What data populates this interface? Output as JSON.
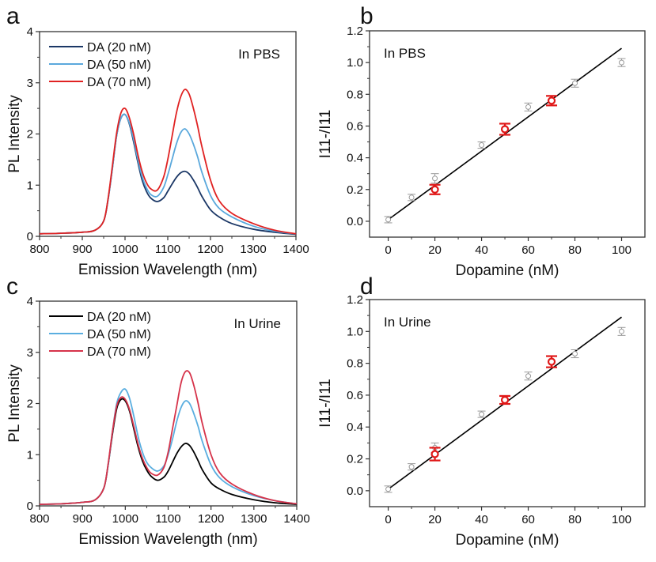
{
  "chart_data": [
    {
      "panel": "a",
      "type": "line",
      "annotation": "In PBS",
      "xlabel": "Emission Wavelength (nm)",
      "ylabel": "PL Intensity",
      "xlim": [
        800,
        1400
      ],
      "ylim": [
        0,
        4
      ],
      "xticks": [
        800,
        900,
        1000,
        1100,
        1200,
        1300,
        1400
      ],
      "yticks": [
        0,
        1,
        2,
        3,
        4
      ],
      "legend_position": "top-left",
      "x": [
        800,
        850,
        900,
        930,
        950,
        960,
        970,
        980,
        990,
        1000,
        1010,
        1020,
        1030,
        1040,
        1050,
        1060,
        1075,
        1090,
        1100,
        1110,
        1120,
        1130,
        1140,
        1150,
        1160,
        1170,
        1180,
        1200,
        1220,
        1250,
        1300,
        1350,
        1400
      ],
      "series": [
        {
          "name": "DA (20 nM)",
          "color": "#1b3766",
          "values": [
            0.05,
            0.06,
            0.08,
            0.12,
            0.3,
            0.7,
            1.3,
            1.95,
            2.3,
            2.38,
            2.2,
            1.85,
            1.45,
            1.1,
            0.88,
            0.75,
            0.68,
            0.75,
            0.88,
            1.02,
            1.15,
            1.24,
            1.27,
            1.22,
            1.1,
            0.95,
            0.78,
            0.52,
            0.38,
            0.25,
            0.14,
            0.08,
            0.04
          ]
        },
        {
          "name": "DA (50 nM)",
          "color": "#5aa8dc",
          "values": [
            0.05,
            0.06,
            0.08,
            0.12,
            0.3,
            0.7,
            1.3,
            1.95,
            2.3,
            2.38,
            2.22,
            1.9,
            1.5,
            1.17,
            0.95,
            0.82,
            0.78,
            0.95,
            1.2,
            1.5,
            1.8,
            2.02,
            2.1,
            2.0,
            1.8,
            1.55,
            1.25,
            0.8,
            0.55,
            0.38,
            0.2,
            0.1,
            0.05
          ]
        },
        {
          "name": "DA (70 nM)",
          "color": "#e02222",
          "values": [
            0.05,
            0.06,
            0.08,
            0.12,
            0.3,
            0.72,
            1.35,
            2.0,
            2.4,
            2.5,
            2.32,
            2.0,
            1.6,
            1.27,
            1.05,
            0.93,
            0.9,
            1.15,
            1.5,
            1.95,
            2.4,
            2.72,
            2.87,
            2.78,
            2.5,
            2.15,
            1.75,
            1.1,
            0.7,
            0.45,
            0.25,
            0.12,
            0.05
          ]
        }
      ]
    },
    {
      "panel": "b",
      "type": "scatter",
      "annotation": "In PBS",
      "xlabel": "Dopamine (nM)",
      "ylabel": "I11-/I11",
      "xlim": [
        -8,
        110
      ],
      "ylim": [
        -0.1,
        1.2
      ],
      "xticks": [
        0,
        20,
        40,
        60,
        80,
        100
      ],
      "yticks": [
        "0.0",
        "0.2",
        "0.4",
        "0.6",
        "0.8",
        "1.0",
        "1.2"
      ],
      "calibration": {
        "color": "#999999",
        "x": [
          0,
          10,
          20,
          40,
          60,
          80,
          100
        ],
        "y": [
          0.01,
          0.15,
          0.27,
          0.48,
          0.72,
          0.87,
          1.0
        ],
        "err": [
          0.02,
          0.02,
          0.03,
          0.02,
          0.025,
          0.025,
          0.025
        ]
      },
      "samples": {
        "color": "#e01818",
        "x": [
          20,
          50,
          70
        ],
        "y": [
          0.2,
          0.58,
          0.76
        ],
        "err": [
          0.03,
          0.035,
          0.03
        ]
      },
      "fit": {
        "x": [
          0,
          100
        ],
        "y": [
          0.01,
          1.09
        ]
      }
    },
    {
      "panel": "c",
      "type": "line",
      "annotation": "In Urine",
      "xlabel": "Emission Wavelength (nm)",
      "ylabel": "PL Intensity",
      "xlim": [
        800,
        1400
      ],
      "ylim": [
        0,
        4
      ],
      "xticks": [
        800,
        900,
        1000,
        1100,
        1200,
        1300,
        1400
      ],
      "yticks": [
        0,
        1,
        2,
        3,
        4
      ],
      "legend_position": "top-left",
      "x": [
        800,
        850,
        900,
        930,
        950,
        960,
        970,
        980,
        990,
        1000,
        1010,
        1020,
        1030,
        1040,
        1050,
        1060,
        1075,
        1090,
        1100,
        1110,
        1120,
        1130,
        1140,
        1150,
        1160,
        1170,
        1180,
        1200,
        1220,
        1250,
        1300,
        1350,
        1400
      ],
      "series": [
        {
          "name": "DA (20 nM)",
          "color": "#000000",
          "values": [
            0.03,
            0.04,
            0.07,
            0.12,
            0.35,
            0.8,
            1.4,
            1.9,
            2.08,
            2.05,
            1.85,
            1.5,
            1.15,
            0.88,
            0.7,
            0.58,
            0.5,
            0.56,
            0.68,
            0.85,
            1.02,
            1.15,
            1.22,
            1.18,
            1.05,
            0.88,
            0.7,
            0.45,
            0.33,
            0.22,
            0.12,
            0.06,
            0.03
          ]
        },
        {
          "name": "DA (50 nM)",
          "color": "#5aaee0",
          "values": [
            0.03,
            0.04,
            0.07,
            0.12,
            0.35,
            0.8,
            1.45,
            2.0,
            2.22,
            2.28,
            2.1,
            1.75,
            1.35,
            1.05,
            0.85,
            0.75,
            0.68,
            0.78,
            1.0,
            1.3,
            1.65,
            1.92,
            2.05,
            2.0,
            1.8,
            1.55,
            1.25,
            0.8,
            0.55,
            0.37,
            0.2,
            0.1,
            0.04
          ]
        },
        {
          "name": "DA (70 nM)",
          "color": "#d6334a",
          "values": [
            0.03,
            0.04,
            0.07,
            0.12,
            0.35,
            0.82,
            1.45,
            1.95,
            2.12,
            2.08,
            1.88,
            1.55,
            1.2,
            0.93,
            0.75,
            0.64,
            0.6,
            0.75,
            1.05,
            1.5,
            1.95,
            2.4,
            2.62,
            2.6,
            2.35,
            2.0,
            1.6,
            1.0,
            0.65,
            0.42,
            0.22,
            0.1,
            0.04
          ]
        }
      ]
    },
    {
      "panel": "d",
      "type": "scatter",
      "annotation": "In Urine",
      "xlabel": "Dopamine (nM)",
      "ylabel": "I11-/I11",
      "xlim": [
        -8,
        110
      ],
      "ylim": [
        -0.1,
        1.2
      ],
      "xticks": [
        0,
        20,
        40,
        60,
        80,
        100
      ],
      "yticks": [
        "0.0",
        "0.2",
        "0.4",
        "0.6",
        "0.8",
        "1.0",
        "1.2"
      ],
      "calibration": {
        "color": "#999999",
        "x": [
          0,
          10,
          20,
          40,
          60,
          80,
          100
        ],
        "y": [
          0.01,
          0.15,
          0.27,
          0.48,
          0.72,
          0.86,
          1.0
        ],
        "err": [
          0.02,
          0.02,
          0.03,
          0.02,
          0.025,
          0.025,
          0.025
        ]
      },
      "samples": {
        "color": "#e01818",
        "x": [
          20,
          50,
          70
        ],
        "y": [
          0.23,
          0.57,
          0.81
        ],
        "err": [
          0.04,
          0.025,
          0.035
        ]
      },
      "fit": {
        "x": [
          0,
          100
        ],
        "y": [
          0.01,
          1.09
        ]
      }
    }
  ]
}
